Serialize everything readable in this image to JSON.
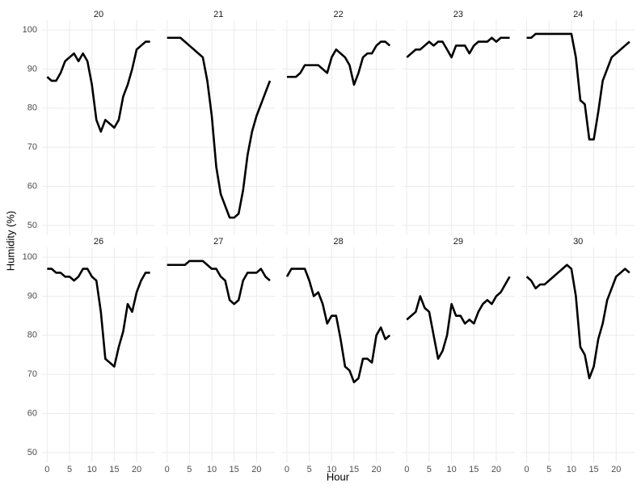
{
  "chart_data": {
    "type": "line",
    "x_label": "Hour",
    "y_label": "Humidity (%)",
    "x": [
      0,
      1,
      2,
      3,
      4,
      5,
      6,
      7,
      8,
      9,
      10,
      11,
      12,
      13,
      14,
      15,
      16,
      17,
      18,
      19,
      20,
      21,
      22,
      23
    ],
    "xlim": [
      -1.15,
      24.15
    ],
    "ylim": [
      47.5,
      102.5
    ],
    "xticks": [
      0,
      5,
      10,
      15,
      20
    ],
    "yticks": [
      50,
      60,
      70,
      80,
      90,
      100
    ],
    "grid": true,
    "series": [
      {
        "name": "20",
        "color": "#000000",
        "values": [
          88,
          87,
          87,
          89,
          92,
          93,
          94,
          92,
          94,
          92,
          86,
          77,
          74,
          77,
          76,
          75,
          77,
          83,
          86,
          90,
          95,
          96,
          97,
          97
        ]
      },
      {
        "name": "21",
        "color": "#000000",
        "values": [
          98,
          98,
          98,
          98,
          97,
          96,
          95,
          94,
          93,
          87,
          78,
          65,
          58,
          55,
          52,
          52,
          53,
          59,
          68,
          74,
          78,
          81,
          84,
          87
        ]
      },
      {
        "name": "22",
        "color": "#000000",
        "values": [
          88,
          88,
          88,
          89,
          91,
          91,
          91,
          91,
          90,
          89,
          93,
          95,
          94,
          93,
          91,
          86,
          89,
          93,
          94,
          94,
          96,
          97,
          97,
          96
        ]
      },
      {
        "name": "23",
        "color": "#000000",
        "values": [
          93,
          94,
          95,
          95,
          96,
          97,
          96,
          97,
          97,
          95,
          93,
          96,
          96,
          96,
          94,
          96,
          97,
          97,
          97,
          98,
          97,
          98,
          98,
          98
        ]
      },
      {
        "name": "24",
        "color": "#000000",
        "values": [
          98,
          98,
          99,
          99,
          99,
          99,
          99,
          99,
          99,
          99,
          99,
          93,
          82,
          81,
          72,
          72,
          79,
          87,
          90,
          93,
          94,
          95,
          96,
          97
        ]
      },
      {
        "name": "26",
        "color": "#000000",
        "values": [
          97,
          97,
          96,
          96,
          95,
          95,
          94,
          95,
          97,
          97,
          95,
          94,
          86,
          74,
          73,
          72,
          77,
          81,
          88,
          86,
          91,
          94,
          96,
          96
        ]
      },
      {
        "name": "27",
        "color": "#000000",
        "values": [
          98,
          98,
          98,
          98,
          98,
          99,
          99,
          99,
          99,
          98,
          97,
          97,
          95,
          94,
          89,
          88,
          89,
          94,
          96,
          96,
          96,
          97,
          95,
          94
        ]
      },
      {
        "name": "28",
        "color": "#000000",
        "values": [
          95,
          97,
          97,
          97,
          97,
          94,
          90,
          91,
          88,
          83,
          85,
          85,
          79,
          72,
          71,
          68,
          69,
          74,
          74,
          73,
          80,
          82,
          79,
          80
        ]
      },
      {
        "name": "29",
        "color": "#000000",
        "values": [
          84,
          85,
          86,
          90,
          87,
          86,
          80,
          74,
          76,
          80,
          88,
          85,
          85,
          83,
          84,
          83,
          86,
          88,
          89,
          88,
          90,
          91,
          93,
          95
        ]
      },
      {
        "name": "30",
        "color": "#000000",
        "values": [
          95,
          94,
          92,
          93,
          93,
          94,
          95,
          96,
          97,
          98,
          97,
          90,
          77,
          75,
          69,
          72,
          79,
          83,
          89,
          92,
          95,
          96,
          97,
          96
        ]
      }
    ]
  }
}
